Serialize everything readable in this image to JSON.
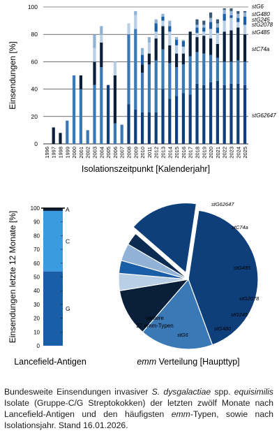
{
  "chart_data": [
    {
      "type": "bar",
      "stacked": true,
      "title": "",
      "xlabel": "Isolationszeitpunkt [Kalenderjahr]",
      "ylabel": "Einsendungen [%]",
      "ylim": [
        0,
        100
      ],
      "yticks": [
        0,
        20,
        40,
        60,
        80,
        100
      ],
      "grid": false,
      "categories": [
        "1996",
        "1997",
        "1998",
        "1999",
        "2000",
        "2001",
        "2002",
        "2003",
        "2004",
        "2005",
        "2006",
        "2007",
        "2008",
        "2009",
        "2010",
        "2011",
        "2012",
        "2013",
        "2014",
        "2015",
        "2016",
        "2017",
        "2018",
        "2019",
        "2020",
        "2021",
        "2022",
        "2023",
        "2024",
        "2025"
      ],
      "series": [
        {
          "name": "stG62647",
          "color": "#0e3f7a",
          "values": [
            0,
            0,
            0,
            0,
            0,
            0,
            0,
            0,
            0,
            43,
            0,
            0,
            29,
            25,
            23,
            23,
            23,
            40,
            33,
            35,
            37,
            36,
            44,
            43,
            45,
            46,
            43,
            44,
            44,
            43
          ]
        },
        {
          "name": "stC74a",
          "color": "#3a78b6",
          "values": [
            0,
            0,
            0,
            17,
            50,
            40,
            10,
            43,
            56,
            0,
            15,
            14,
            51,
            59,
            29,
            35,
            38,
            29,
            26,
            21,
            21,
            28,
            23,
            23,
            20,
            17,
            17,
            16,
            17,
            17
          ]
        },
        {
          "name": "stG485",
          "color": "#0a1f3a",
          "values": [
            0,
            12,
            8,
            0,
            0,
            10,
            0,
            17,
            18,
            0,
            35,
            0,
            0,
            0,
            6,
            8,
            16,
            17,
            13,
            10,
            8,
            18,
            11,
            13,
            12,
            10,
            22,
            23,
            24,
            20
          ]
        },
        {
          "name": "stG2078",
          "color": "#b9cfe6",
          "values": [
            0,
            0,
            0,
            0,
            0,
            0,
            0,
            10,
            6,
            0,
            10,
            0,
            8,
            10,
            0,
            8,
            5,
            4,
            10,
            6,
            5,
            0,
            3,
            3,
            7,
            8,
            8,
            9,
            4,
            7
          ]
        },
        {
          "name": "stG245",
          "color": "#1a5ea8",
          "values": [
            0,
            0,
            0,
            0,
            0,
            0,
            0,
            0,
            0,
            0,
            0,
            0,
            0,
            0,
            7,
            0,
            6,
            3,
            4,
            4,
            4,
            0,
            4,
            3,
            5,
            4,
            5,
            2,
            3,
            6
          ]
        },
        {
          "name": "stG480",
          "color": "#8fb2d6",
          "values": [
            0,
            0,
            0,
            0,
            0,
            0,
            0,
            10,
            6,
            0,
            0,
            0,
            0,
            3,
            5,
            4,
            3,
            2,
            4,
            2,
            1,
            0,
            2,
            2,
            3,
            3,
            3,
            3,
            3,
            3
          ]
        },
        {
          "name": "stG6",
          "color": "#3a5a78",
          "values": [
            0,
            0,
            0,
            0,
            0,
            0,
            0,
            0,
            0,
            0,
            0,
            0,
            0,
            0,
            0,
            0,
            0,
            0,
            0,
            0,
            0,
            0,
            4,
            3,
            4,
            3,
            1,
            2,
            2,
            1
          ]
        }
      ],
      "series_labels": [
        "stG6",
        "stG480",
        "stG245",
        "stG2078",
        "stG485",
        "stC74a",
        "stG62647"
      ]
    },
    {
      "type": "bar",
      "stacked": true,
      "title": "",
      "xlabel": "Lancefield-Antigen",
      "ylabel": "Einsendungen letzte 12 Monate [%]",
      "ylim": [
        0,
        100
      ],
      "yticks": [
        0,
        10,
        20,
        30,
        40,
        50,
        60,
        70,
        80,
        90,
        100
      ],
      "categories": [
        ""
      ],
      "series": [
        {
          "name": "G",
          "color": "#1a5ea8",
          "values": [
            54
          ]
        },
        {
          "name": "C",
          "color": "#3a9be0",
          "values": [
            44
          ]
        },
        {
          "name": "A",
          "color": "#0b1e3a",
          "values": [
            2
          ]
        }
      ]
    },
    {
      "type": "pie",
      "title": "",
      "xlabel": "emm Verteilung [Haupttyp]",
      "xlabel_italic": "emm",
      "xlabel_rest": " Verteilung [Haupttyp]",
      "slices": [
        {
          "label": "stG62647",
          "value": 42,
          "color": "#0e3f7a"
        },
        {
          "label": "stC74a",
          "value": 17,
          "color": "#3a78b6"
        },
        {
          "label": "stG485",
          "value": 11,
          "color": "#0a1f3a"
        },
        {
          "label": "stG2078",
          "value": 4,
          "color": "#b9cfe6"
        },
        {
          "label": "stG245",
          "value": 3,
          "color": "#1a5ea8"
        },
        {
          "label": "stG480",
          "value": 4,
          "color": "#8fb2d6"
        },
        {
          "label": "stG6",
          "value": 3,
          "color": "#0c2b52"
        },
        {
          "label": "weitere\n27 emm-Typen",
          "value": 16,
          "color": "#0e3f7a"
        }
      ]
    }
  ],
  "caption": {
    "p1": "Bundesweite Einsendungen invasiver ",
    "p2": "S. dysgalactiae",
    "p3": " spp. ",
    "p4": "equisimilis",
    "p5": " Isolate (Gruppe-C/G Streptokokken) der letzten zwölf Monate nach Lancefield-Antigen und den häufigsten ",
    "p6": "emm",
    "p7": "-Typen, sowie nach Isolationsjahr. Stand 16.01.2026."
  }
}
